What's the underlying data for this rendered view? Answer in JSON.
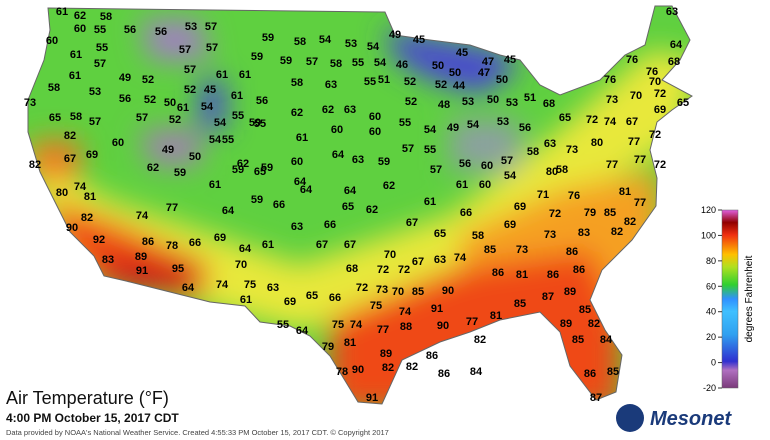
{
  "header": {
    "title": "Air Temperature (°F)",
    "subtitle": "4:00 PM October 15, 2017 CDT",
    "credit": "Data provided by NOAA's National Weather Service. Created 4:55:33 PM October 15, 2017 CDT. © Copyright 2017",
    "logo": "Mesonet"
  },
  "colorbar": {
    "label": "degrees Fahrenheit",
    "lim": [
      -20,
      120
    ],
    "ticks": [
      -20,
      0,
      20,
      40,
      60,
      80,
      100,
      120
    ]
  },
  "stations": [
    61,
    62,
    58,
    60,
    55,
    56,
    56,
    53,
    57,
    59,
    58,
    54,
    53,
    54,
    49,
    45,
    45,
    47,
    45,
    50,
    60,
    55,
    57,
    57,
    59,
    59,
    57,
    58,
    55,
    54,
    46,
    50,
    47,
    61,
    57,
    49,
    52,
    57,
    61,
    61,
    58,
    63,
    55,
    51,
    52,
    52,
    44,
    50,
    61,
    58,
    53,
    56,
    52,
    50,
    52,
    45,
    61,
    56,
    73,
    57,
    52,
    54,
    55,
    62,
    62,
    63,
    60,
    52,
    48,
    53,
    50,
    53,
    51,
    65,
    58,
    57,
    61,
    54,
    55,
    60,
    49,
    50,
    54,
    55,
    59,
    82,
    67,
    69,
    62,
    59,
    60,
    61,
    60,
    60,
    55,
    54,
    49,
    54,
    53,
    56,
    68,
    65,
    72,
    74,
    67,
    73,
    70,
    72,
    69,
    65,
    76,
    76,
    76,
    70,
    68,
    64,
    63,
    77,
    72,
    77,
    72,
    82,
    80,
    81,
    74,
    62,
    59,
    61,
    59,
    65,
    64,
    64,
    63,
    59,
    57,
    55,
    57,
    56,
    60,
    57,
    58,
    63,
    58,
    73,
    80,
    77,
    82,
    90,
    92,
    83,
    89,
    91,
    95,
    64,
    86,
    78,
    66,
    69,
    74,
    77,
    64,
    59,
    66,
    64,
    64,
    62,
    61,
    61,
    60,
    54,
    80,
    71,
    76,
    81,
    77,
    79,
    85,
    82,
    82,
    83,
    72,
    69,
    69,
    58,
    66,
    65,
    67,
    62,
    65,
    66,
    67,
    67,
    63,
    61,
    64,
    70,
    74,
    75,
    63,
    61,
    69,
    65,
    66,
    68,
    72,
    72,
    72,
    73,
    70,
    67,
    63,
    74,
    85,
    73,
    73,
    86,
    86,
    81,
    86,
    86,
    87,
    89,
    85,
    82,
    84,
    85,
    89,
    85,
    81,
    77,
    90,
    90,
    85,
    70,
    91,
    88,
    75,
    74,
    77,
    75,
    74,
    82,
    89,
    82,
    82,
    86,
    86,
    84,
    90,
    78,
    91,
    87,
    85,
    86,
    79,
    81,
    55,
    64
  ]
}
